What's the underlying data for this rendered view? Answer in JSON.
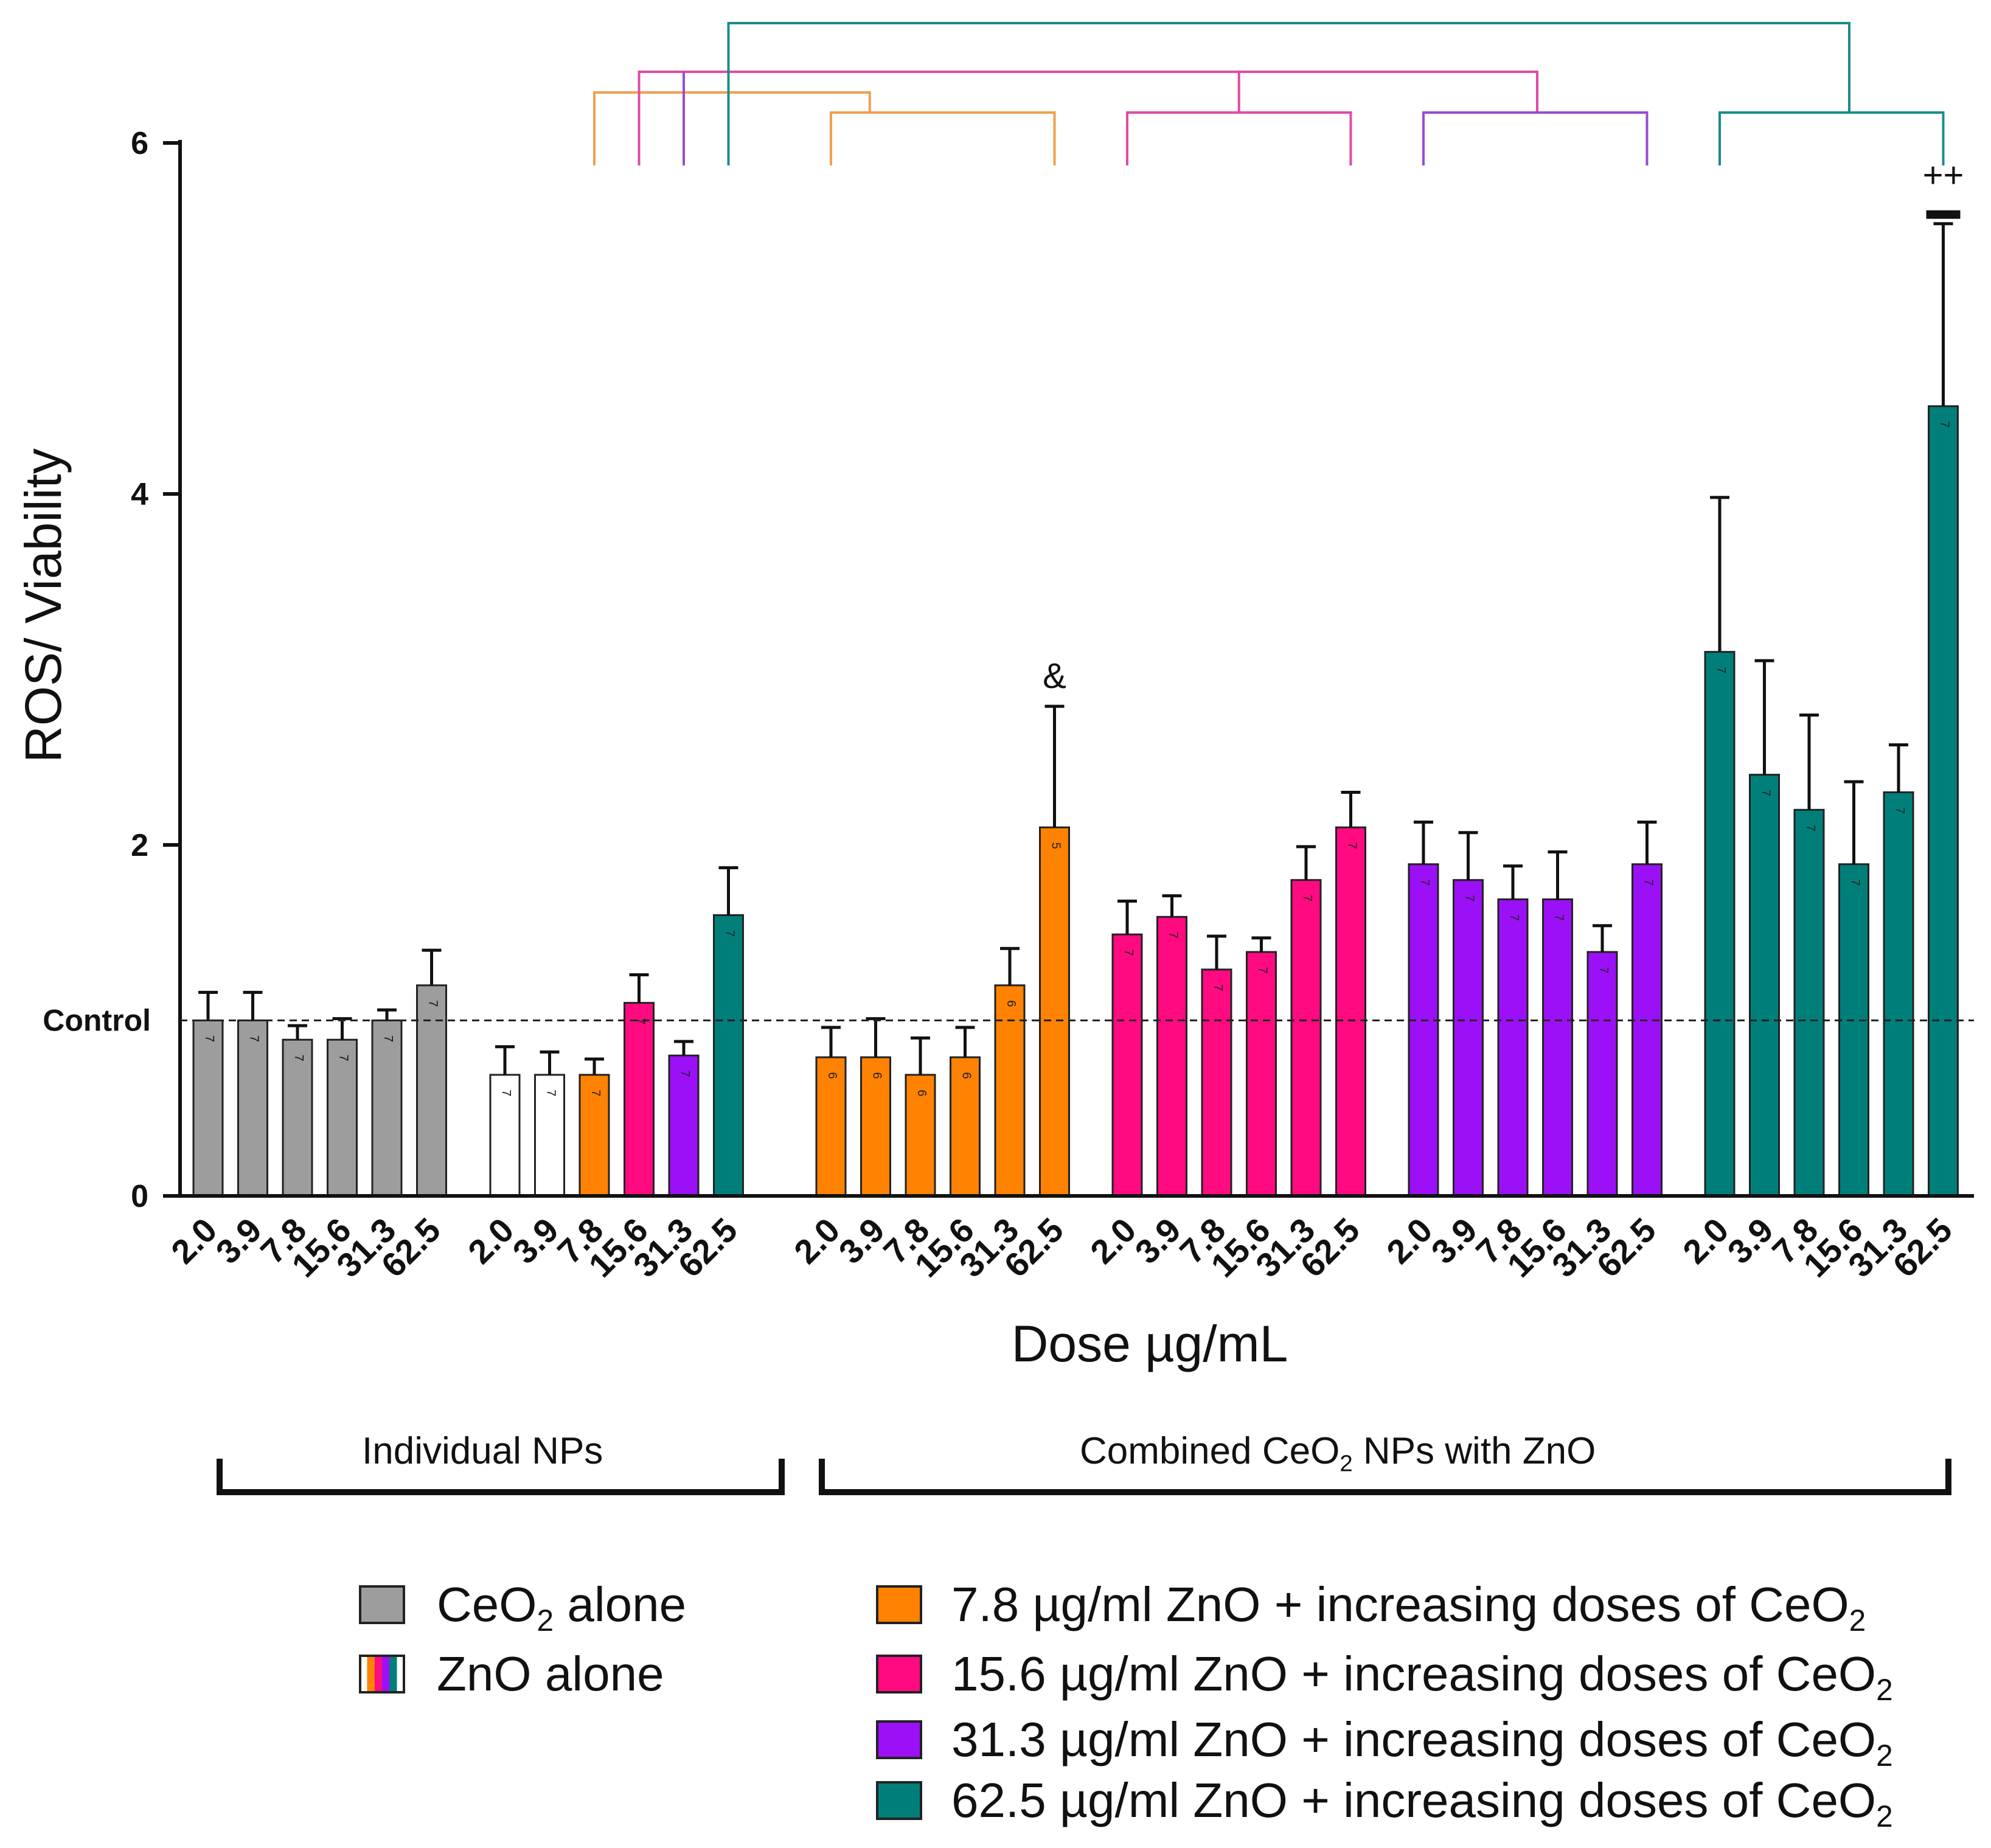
{
  "chart_data": {
    "type": "bar",
    "ylabel": "ROS/ Viability",
    "xlabel": "Dose µg/mL",
    "ylim": [
      0,
      6
    ],
    "yticks": [
      0,
      2,
      4,
      6
    ],
    "ytick_labels": [
      "0",
      "2",
      "4",
      "6"
    ],
    "control_line": {
      "value": 1.0,
      "label": "Control"
    },
    "groups": [
      {
        "name": "CeO2 alone",
        "categories": [
          "2.0",
          "3.9",
          "7.8",
          "15.6",
          "31.3",
          "62.5"
        ],
        "values": [
          1.0,
          1.0,
          0.89,
          0.89,
          1.0,
          1.2
        ],
        "errors": [
          0.16,
          0.16,
          0.08,
          0.12,
          0.06,
          0.2
        ],
        "n": [
          "7",
          "7",
          "7",
          "7",
          "7",
          "7"
        ],
        "colors": [
          "#9d9d9d",
          "#9d9d9d",
          "#9d9d9d",
          "#9d9d9d",
          "#9d9d9d",
          "#9d9d9d"
        ]
      },
      {
        "name": "ZnO alone",
        "categories": [
          "2.0",
          "3.9",
          "7.8",
          "15.6",
          "31.3",
          "62.5"
        ],
        "values": [
          0.69,
          0.69,
          0.69,
          1.1,
          0.8,
          1.6
        ],
        "errors": [
          0.16,
          0.13,
          0.09,
          0.16,
          0.08,
          0.27
        ],
        "n": [
          "7",
          "7",
          "7",
          "7",
          "7",
          "7"
        ],
        "colors": [
          "#ffffff",
          "#ffffff",
          "#ff8202",
          "#ff0a80",
          "#9b10f6",
          "#007f7a"
        ]
      },
      {
        "name": "7.8 µg/ml ZnO + increasing doses of CeO2",
        "categories": [
          "2.0",
          "3.9",
          "7.8",
          "15.6",
          "31.3",
          "62.5"
        ],
        "values": [
          0.79,
          0.79,
          0.69,
          0.79,
          1.2,
          2.1
        ],
        "errors": [
          0.17,
          0.22,
          0.21,
          0.17,
          0.21,
          0.69
        ],
        "n": [
          "6",
          "6",
          "6",
          "6",
          "6",
          "5"
        ],
        "colors": [
          "#ff8202",
          "#ff8202",
          "#ff8202",
          "#ff8202",
          "#ff8202",
          "#ff8202"
        ]
      },
      {
        "name": "15.6 µg/ml ZnO + increasing doses of CeO2",
        "categories": [
          "2.0",
          "3.9",
          "7.8",
          "15.6",
          "31.3",
          "62.5"
        ],
        "values": [
          1.49,
          1.59,
          1.29,
          1.39,
          1.8,
          2.1
        ],
        "errors": [
          0.19,
          0.12,
          0.19,
          0.08,
          0.19,
          0.2
        ],
        "n": [
          "7",
          "7",
          "7",
          "7",
          "7",
          "7"
        ],
        "colors": [
          "#ff0a80",
          "#ff0a80",
          "#ff0a80",
          "#ff0a80",
          "#ff0a80",
          "#ff0a80"
        ]
      },
      {
        "name": "31.3 µg/ml ZnO + increasing doses of CeO2",
        "categories": [
          "2.0",
          "3.9",
          "7.8",
          "15.6",
          "31.3",
          "62.5"
        ],
        "values": [
          1.89,
          1.8,
          1.69,
          1.69,
          1.39,
          1.89
        ],
        "errors": [
          0.24,
          0.27,
          0.19,
          0.27,
          0.15,
          0.24
        ],
        "n": [
          "7",
          "7",
          "7",
          "7",
          "7",
          "7"
        ],
        "colors": [
          "#9b10f6",
          "#9b10f6",
          "#9b10f6",
          "#9b10f6",
          "#9b10f6",
          "#9b10f6"
        ]
      },
      {
        "name": "62.5 µg/ml ZnO + increasing doses of CeO2",
        "categories": [
          "2.0",
          "3.9",
          "7.8",
          "15.6",
          "31.3",
          "62.5"
        ],
        "values": [
          3.1,
          2.4,
          2.2,
          1.89,
          2.3,
          4.5
        ],
        "errors": [
          0.88,
          0.65,
          0.54,
          0.47,
          0.27,
          1.04
        ],
        "n": [
          "7",
          "7",
          "7",
          "7",
          "7",
          "7"
        ],
        "colors": [
          "#007f7a",
          "#007f7a",
          "#007f7a",
          "#007f7a",
          "#007f7a",
          "#007f7a"
        ]
      }
    ],
    "annotations": [
      {
        "text": "&",
        "group": 2,
        "bar": 5
      },
      {
        "text": "++",
        "group": 5,
        "bar": 5
      }
    ],
    "comparison_brackets": [
      {
        "color": "#f0a050",
        "from": "ZnO alone 7.8",
        "to": "7.8 µg/ml ZnO series"
      },
      {
        "color": "#e04aa8",
        "from": "ZnO alone 15.6",
        "to": "15.6 / 31.3 µg/ml ZnO series"
      },
      {
        "color": "#9b4ad0",
        "from": "ZnO alone 31.3",
        "to": "31.3 µg/ml ZnO series"
      },
      {
        "color": "#1a8c88",
        "from": "ZnO alone 62.5",
        "to": "62.5 µg/ml ZnO series"
      }
    ]
  },
  "group_labels": {
    "individual": "Individual NPs",
    "combined_prefix": "Combined CeO",
    "combined_sub": "2",
    "combined_suffix": " NPs with ZnO"
  },
  "legend": {
    "ceo2_prefix": "CeO",
    "ceo2_sub": "2",
    "ceo2_suffix": " alone",
    "zno": "ZnO alone",
    "items": [
      {
        "text": "7.8 µg/ml ZnO + increasing doses of CeO",
        "sub": "2",
        "color": "#ff8202"
      },
      {
        "text": "15.6 µg/ml ZnO + increasing doses of CeO",
        "sub": "2",
        "color": "#ff0a80"
      },
      {
        "text": "31.3 µg/ml ZnO + increasing doses of CeO",
        "sub": "2",
        "color": "#9b10f6"
      },
      {
        "text": "62.5 µg/ml ZnO + increasing doses of CeO",
        "sub": "2",
        "color": "#007f7a"
      }
    ],
    "colors": {
      "ceo2": "#9d9d9d",
      "zno_stripes": [
        "#ff8202",
        "#ff0a80",
        "#9b10f6",
        "#007f7a"
      ]
    }
  }
}
